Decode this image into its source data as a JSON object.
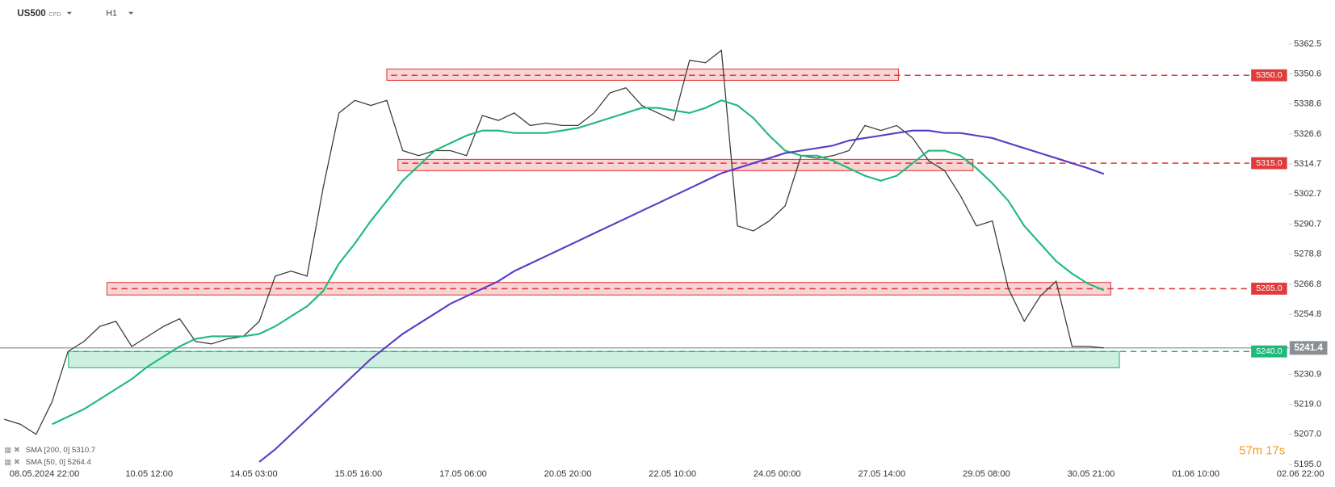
{
  "chart_data": {
    "type": "line",
    "symbol": "US500",
    "instrument": "CFD",
    "timeframe": "H1",
    "timer": "57m 17s",
    "series": [
      {
        "name": "US500",
        "color": "#3a3a3a",
        "values": [
          5213,
          5211,
          5207,
          5220,
          5240,
          5244,
          5250,
          5252,
          5242,
          5246,
          5250,
          5253,
          5244,
          5243,
          5245,
          5246,
          5252,
          5270,
          5272,
          5270,
          5305,
          5335,
          5340,
          5338,
          5340,
          5320,
          5318,
          5320,
          5320,
          5318,
          5334,
          5332,
          5335,
          5330,
          5331,
          5330,
          5330,
          5335,
          5343,
          5345,
          5338,
          5335,
          5332,
          5356,
          5355,
          5360,
          5290,
          5288,
          5292,
          5298,
          5318,
          5317,
          5318,
          5320,
          5330,
          5328,
          5330,
          5325,
          5316,
          5312,
          5302,
          5290,
          5292,
          5265,
          5252,
          5262,
          5268,
          5242,
          5242,
          5241.4
        ]
      },
      {
        "name": "SMA [50, 0] 5264.4",
        "color": "#1fb97a",
        "values": [
          null,
          null,
          null,
          5211,
          5214,
          5217,
          5221,
          5225,
          5229,
          5234,
          5238,
          5242,
          5245,
          5246,
          5246,
          5246,
          5247,
          5250,
          5254,
          5258,
          5264,
          5275,
          5283,
          5292,
          5300,
          5308,
          5314,
          5320,
          5323,
          5326,
          5328,
          5328,
          5327,
          5327,
          5327,
          5328,
          5329,
          5331,
          5333,
          5335,
          5337,
          5337,
          5336,
          5335,
          5337,
          5340,
          5338,
          5333,
          5326,
          5320,
          5318,
          5318,
          5316,
          5313,
          5310,
          5308,
          5310,
          5315,
          5320,
          5320,
          5318,
          5313,
          5307,
          5300,
          5290,
          5283,
          5276,
          5271,
          5267,
          5264.4
        ]
      },
      {
        "name": "SMA [200, 0] 5310.7",
        "color": "#5b3cc4",
        "values": [
          null,
          null,
          null,
          null,
          null,
          null,
          null,
          null,
          null,
          null,
          null,
          null,
          null,
          null,
          null,
          null,
          5196,
          5201,
          5207,
          5213,
          5219,
          5225,
          5231,
          5237,
          5242,
          5247,
          5251,
          5255,
          5259,
          5262,
          5265,
          5268,
          5272,
          5275,
          5278,
          5281,
          5284,
          5287,
          5290,
          5293,
          5296,
          5299,
          5302,
          5305,
          5308,
          5311,
          5313,
          5315,
          5317,
          5319,
          5320,
          5321,
          5322,
          5324,
          5325,
          5326,
          5327,
          5328,
          5328,
          5327,
          5327,
          5326,
          5325,
          5323,
          5321,
          5319,
          5317,
          5315,
          5313,
          5310.7
        ]
      }
    ],
    "levels": [
      {
        "value": 5350,
        "label": "5350.0",
        "color": "#e03c3c",
        "low": 5348,
        "high": 5352.5
      },
      {
        "value": 5315,
        "label": "5315.0",
        "color": "#e03c3c",
        "low": 5312,
        "high": 5316.5
      },
      {
        "value": 5265,
        "label": "5265.0",
        "color": "#e03c3c",
        "low": 5262.5,
        "high": 5267.5
      },
      {
        "value": 5240,
        "label": "5240.0",
        "color": "#1fb97a",
        "low": 5233.5,
        "high": 5240
      }
    ],
    "last_price": {
      "value": 5241.4,
      "label": "5241.4"
    },
    "xticks": [
      "08.05.2024 22:00",
      "10.05 12:00",
      "14.05 03:00",
      "15.05 16:00",
      "17.05 06:00",
      "20.05 20:00",
      "22.05 10:00",
      "24.05 00:00",
      "27.05 14:00",
      "29.05 08:00",
      "30.05 21:00",
      "01.06 10:00",
      "02.06 22:00"
    ],
    "ylim": [
      5186,
      5380
    ],
    "yticks": [
      5362.5,
      5350.6,
      5338.6,
      5326.6,
      5314.7,
      5302.7,
      5290.7,
      5278.8,
      5266.8,
      5254.8,
      5230.9,
      {
        "value": 5219,
        "label": "5219.0"
      },
      {
        "value": 5207,
        "label": "5207.0"
      },
      {
        "value": 5195,
        "label": "5195.0"
      }
    ]
  }
}
